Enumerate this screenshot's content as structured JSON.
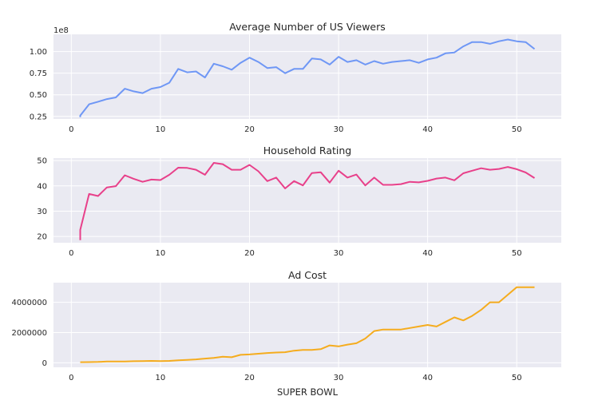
{
  "chart_data": [
    {
      "type": "line",
      "title": "Average Number of US Viewers",
      "xlabel": "",
      "ylabel": "",
      "y_offset_label": "1e8",
      "color": "#6f97f5",
      "xlim": [
        -2,
        55
      ],
      "ylim": [
        0.22,
        1.2
      ],
      "xticks": [
        0,
        10,
        20,
        30,
        40,
        50
      ],
      "yticks": [
        0.25,
        0.5,
        0.75,
        1.0
      ],
      "ytick_labels": [
        "0.25",
        "0.50",
        "0.75",
        "1.00"
      ],
      "grid": true,
      "x": [
        1,
        1,
        2,
        3,
        4,
        5,
        6,
        7,
        8,
        9,
        10,
        11,
        12,
        13,
        14,
        15,
        16,
        17,
        18,
        19,
        20,
        21,
        22,
        23,
        24,
        25,
        26,
        27,
        28,
        29,
        30,
        31,
        32,
        33,
        34,
        35,
        36,
        37,
        38,
        39,
        40,
        41,
        42,
        43,
        44,
        45,
        46,
        47,
        48,
        49,
        50,
        51,
        52
      ],
      "values": [
        0.24,
        0.26,
        0.39,
        0.42,
        0.45,
        0.47,
        0.57,
        0.54,
        0.52,
        0.57,
        0.59,
        0.64,
        0.8,
        0.76,
        0.77,
        0.7,
        0.86,
        0.83,
        0.79,
        0.87,
        0.93,
        0.88,
        0.81,
        0.82,
        0.75,
        0.8,
        0.8,
        0.92,
        0.91,
        0.85,
        0.94,
        0.88,
        0.9,
        0.85,
        0.89,
        0.86,
        0.88,
        0.89,
        0.9,
        0.87,
        0.91,
        0.93,
        0.98,
        0.99,
        1.06,
        1.11,
        1.11,
        1.09,
        1.12,
        1.14,
        1.12,
        1.11,
        1.03
      ]
    },
    {
      "type": "line",
      "title": "Household Rating",
      "xlabel": "",
      "ylabel": "",
      "color": "#e8408a",
      "xlim": [
        -2,
        55
      ],
      "ylim": [
        17.5,
        51
      ],
      "xticks": [
        0,
        10,
        20,
        30,
        40,
        50
      ],
      "yticks": [
        20,
        30,
        40,
        50
      ],
      "ytick_labels": [
        "20",
        "30",
        "40",
        "50"
      ],
      "grid": true,
      "x": [
        1,
        1,
        2,
        3,
        4,
        5,
        6,
        7,
        8,
        9,
        10,
        11,
        12,
        13,
        14,
        15,
        16,
        17,
        18,
        19,
        20,
        21,
        22,
        23,
        24,
        25,
        26,
        27,
        28,
        29,
        30,
        31,
        32,
        33,
        34,
        35,
        36,
        37,
        38,
        39,
        40,
        41,
        42,
        43,
        44,
        45,
        46,
        47,
        48,
        49,
        50,
        51,
        52
      ],
      "values": [
        18.5,
        22.6,
        36.8,
        36.0,
        39.4,
        39.9,
        44.2,
        42.8,
        41.6,
        42.5,
        42.3,
        44.4,
        47.2,
        47.1,
        46.4,
        44.4,
        49.1,
        48.6,
        46.4,
        46.4,
        48.3,
        45.8,
        41.9,
        43.3,
        39.0,
        41.9,
        40.2,
        45.1,
        45.4,
        41.3,
        46.0,
        43.3,
        44.5,
        40.2,
        43.3,
        40.4,
        40.4,
        40.7,
        41.6,
        41.4,
        42.0,
        42.9,
        43.3,
        42.2,
        45.0,
        46.0,
        47.0,
        46.4,
        46.7,
        47.5,
        46.6,
        45.3,
        43.1
      ]
    },
    {
      "type": "line",
      "title": "Ad Cost",
      "xlabel": "SUPER BOWL",
      "ylabel": "",
      "color": "#f5ac1e",
      "xlim": [
        -2,
        55
      ],
      "ylim": [
        -300000,
        5300000
      ],
      "xticks": [
        0,
        10,
        20,
        30,
        40,
        50
      ],
      "yticks": [
        0,
        2000000,
        4000000
      ],
      "ytick_labels": [
        "0",
        "2000000",
        "4000000"
      ],
      "grid": true,
      "x": [
        1,
        2,
        3,
        4,
        5,
        6,
        7,
        8,
        9,
        10,
        11,
        12,
        13,
        14,
        15,
        16,
        17,
        18,
        19,
        20,
        21,
        22,
        23,
        24,
        25,
        26,
        27,
        28,
        29,
        30,
        31,
        32,
        33,
        34,
        35,
        36,
        37,
        38,
        39,
        40,
        41,
        42,
        43,
        44,
        45,
        46,
        47,
        48,
        49,
        50,
        51,
        52
      ],
      "values": [
        40000,
        42000,
        54000,
        78000,
        78000,
        86000,
        103000,
        107000,
        125000,
        110000,
        125000,
        162000,
        185000,
        222000,
        275000,
        324000,
        400000,
        368000,
        525000,
        550000,
        600000,
        645000,
        675000,
        700000,
        800000,
        850000,
        850000,
        900000,
        1150000,
        1085000,
        1200000,
        1291000,
        1600000,
        2100000,
        2200000,
        2200000,
        2200000,
        2300000,
        2400000,
        2500000,
        2400000,
        2700000,
        3000000,
        2800000,
        3100000,
        3500000,
        4000000,
        4000000,
        4500000,
        5000000,
        5000000,
        5000000
      ]
    }
  ]
}
